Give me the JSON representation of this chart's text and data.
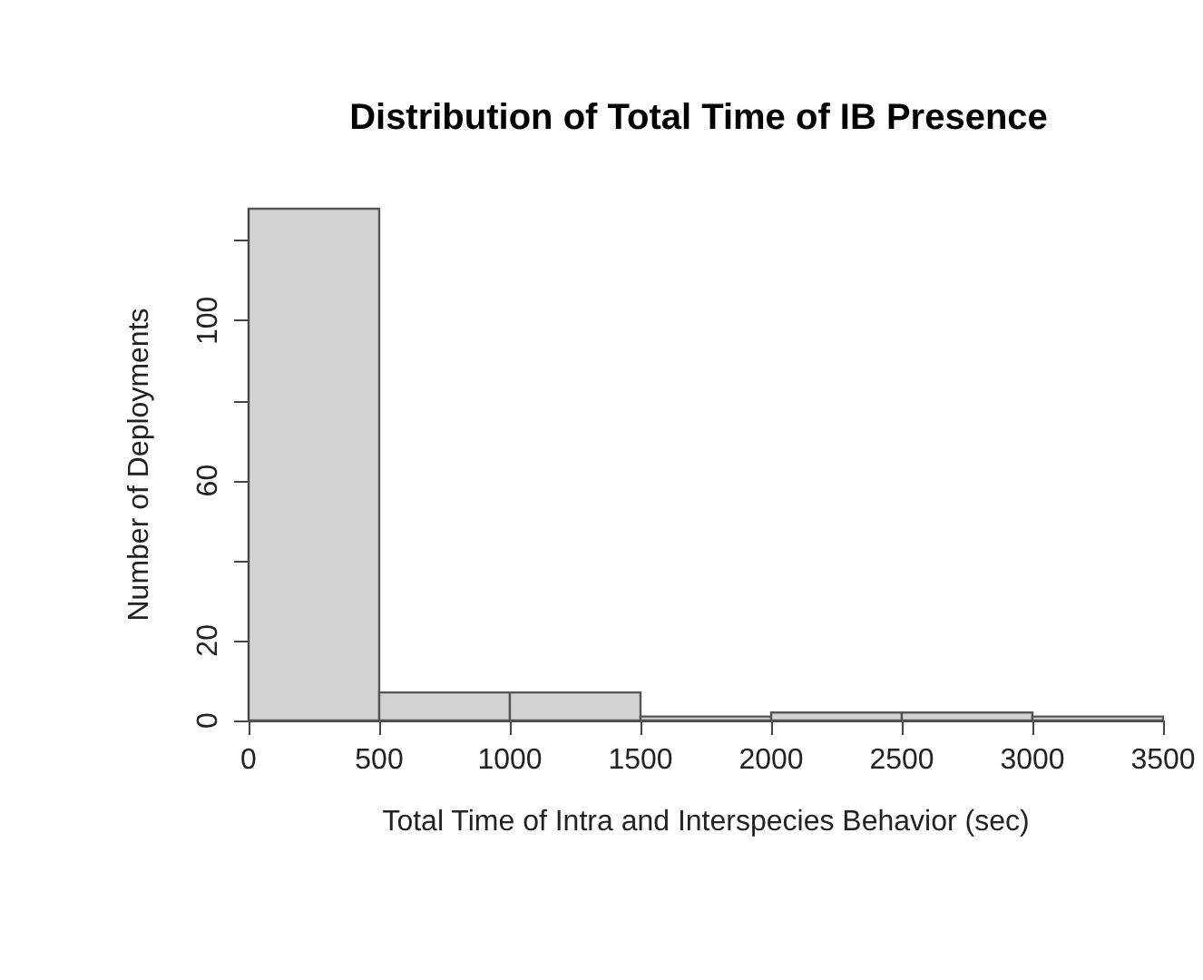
{
  "chart_data": {
    "type": "histogram",
    "title": "Distribution of Total Time of IB Presence",
    "xlabel": "Total Time of Intra and Interspecies Behavior (sec)",
    "ylabel": "Number of Deployments",
    "bins": [
      0,
      500,
      1000,
      1500,
      2000,
      2500,
      3000,
      3500
    ],
    "values": [
      128,
      7,
      7,
      1,
      2,
      2,
      1
    ],
    "color": "#d3d3d3",
    "xlim": [
      0,
      3500
    ],
    "xticks": [
      0,
      500,
      1000,
      1500,
      2000,
      2500,
      3000,
      3500
    ],
    "ylim": [
      0,
      128
    ],
    "yticks": [
      0,
      20,
      {
        "value": 40,
        "label": null
      },
      60,
      {
        "value": 80,
        "label": null
      },
      100,
      {
        "value": 120,
        "label": null
      }
    ],
    "grid": false
  }
}
